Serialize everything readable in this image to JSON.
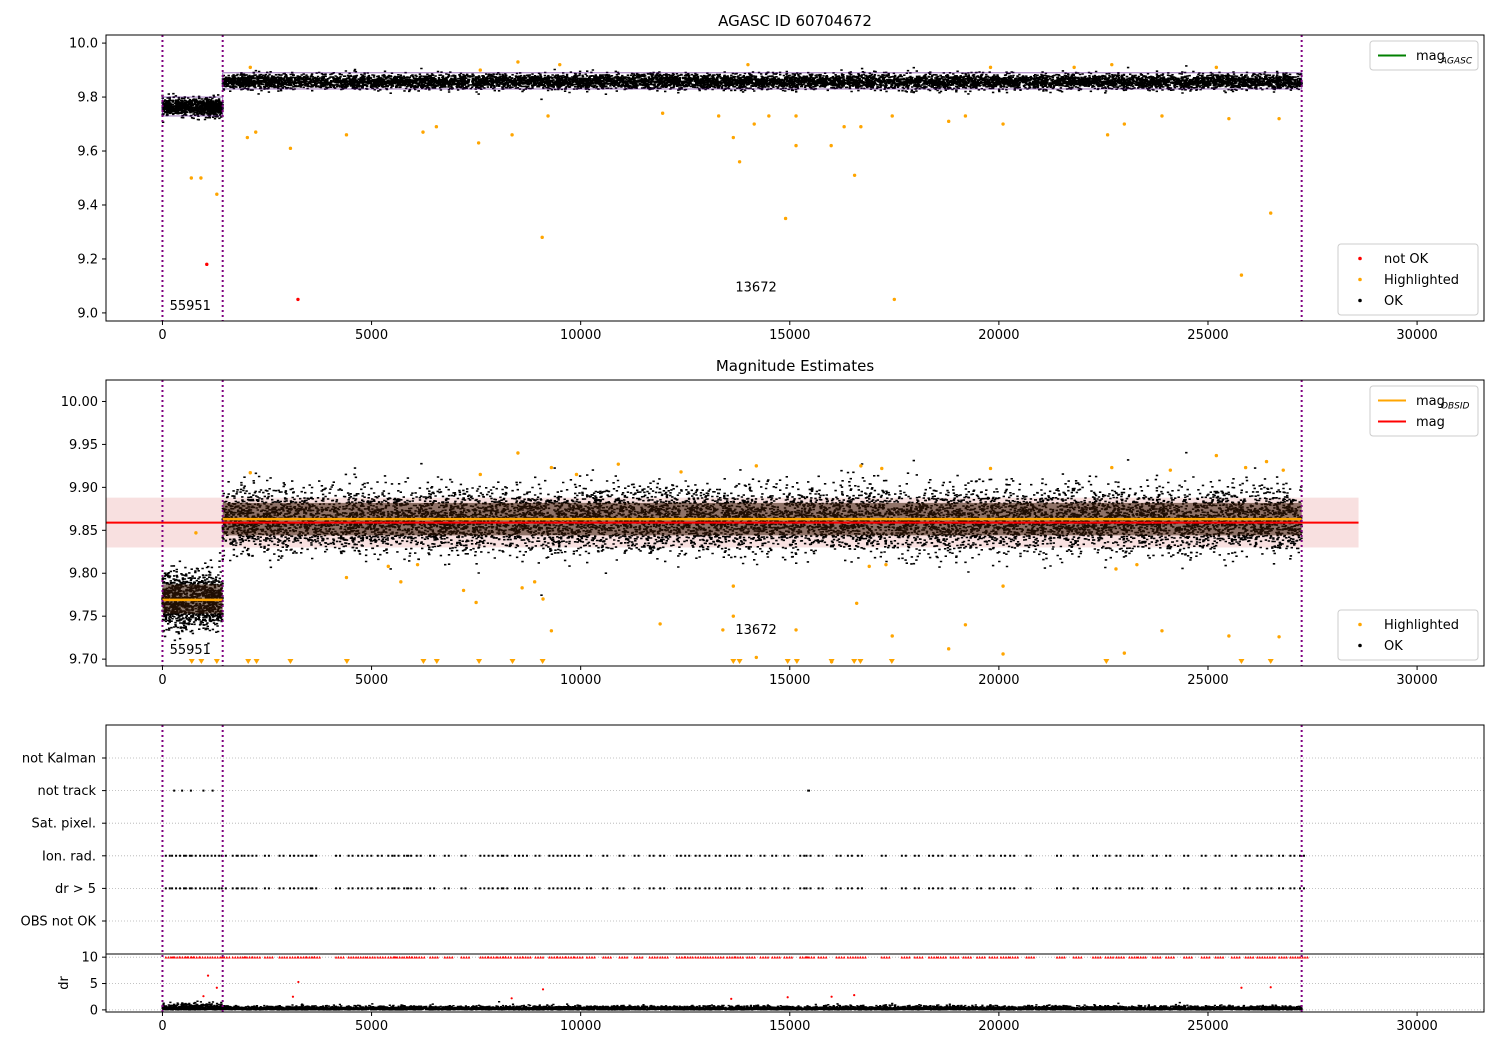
{
  "chart_data": [
    {
      "type": "scatter",
      "title": "AGASC ID 60704672",
      "xlim": [
        -1350,
        31600
      ],
      "ylim": [
        8.97,
        10.03
      ],
      "xticks": [
        0,
        5000,
        10000,
        15000,
        20000,
        25000,
        30000
      ],
      "yticks": [
        9.0,
        9.2,
        9.4,
        9.6,
        9.8,
        10.0
      ],
      "ytick_labels": [
        "9.0",
        "9.2",
        "9.4",
        "9.6",
        "9.8",
        "10.0"
      ],
      "obs_boundaries": [
        0,
        1440,
        27240
      ],
      "obs_labels": [
        {
          "text": "55951",
          "x": 170,
          "y": 9.01
        },
        {
          "text": "13672",
          "x": 13700,
          "y": 9.08
        }
      ],
      "bands": [
        {
          "x": [
            0,
            1440
          ],
          "center": 9.765,
          "halfwidth": 0.035
        },
        {
          "x": [
            1440,
            27240
          ],
          "center": 9.86,
          "halfwidth": 0.03
        }
      ],
      "colors": {
        "ok": "#000000",
        "highlighted": "#ffa500",
        "not_ok": "#ff0000",
        "mag_agasc": "#008000",
        "boundary": "#800080",
        "band_outline": "#4b0082"
      },
      "series": [
        {
          "name": "not OK",
          "color": "#ff0000",
          "points": [
            [
              1060,
              9.18
            ],
            [
              3240,
              9.05
            ]
          ]
        },
        {
          "name": "Highlighted",
          "color": "#ffa500",
          "points": [
            [
              690,
              9.5
            ],
            [
              920,
              9.5
            ],
            [
              1300,
              9.44
            ],
            [
              2030,
              9.65
            ],
            [
              2230,
              9.67
            ],
            [
              3060,
              9.61
            ],
            [
              4400,
              9.66
            ],
            [
              6230,
              9.67
            ],
            [
              6550,
              9.69
            ],
            [
              7560,
              9.63
            ],
            [
              8360,
              9.66
            ],
            [
              9080,
              9.28
            ],
            [
              9220,
              9.73
            ],
            [
              11960,
              9.74
            ],
            [
              13300,
              9.73
            ],
            [
              13650,
              9.65
            ],
            [
              13800,
              9.56
            ],
            [
              14150,
              9.7
            ],
            [
              14500,
              9.73
            ],
            [
              14900,
              9.35
            ],
            [
              15150,
              9.73
            ],
            [
              15150,
              9.62
            ],
            [
              15990,
              9.62
            ],
            [
              16300,
              9.69
            ],
            [
              16550,
              9.51
            ],
            [
              16700,
              9.69
            ],
            [
              17450,
              9.73
            ],
            [
              17500,
              9.05
            ],
            [
              18800,
              9.71
            ],
            [
              19200,
              9.73
            ],
            [
              20100,
              9.7
            ],
            [
              22600,
              9.66
            ],
            [
              23000,
              9.7
            ],
            [
              23900,
              9.73
            ],
            [
              25500,
              9.72
            ],
            [
              25800,
              9.14
            ],
            [
              26500,
              9.37
            ],
            [
              26700,
              9.72
            ],
            [
              8500,
              9.93
            ],
            [
              2100,
              9.91
            ],
            [
              9500,
              9.92
            ],
            [
              22700,
              9.92
            ],
            [
              25200,
              9.91
            ],
            [
              21800,
              9.91
            ],
            [
              14000,
              9.92
            ],
            [
              19800,
              9.91
            ],
            [
              7600,
              9.9
            ]
          ]
        },
        {
          "name": "OK",
          "color": "#000000"
        }
      ],
      "legends": [
        {
          "position": "top-right",
          "entries": [
            {
              "label": "mag",
              "sub": "AGASC",
              "kind": "line",
              "color": "#008000"
            }
          ]
        },
        {
          "position": "bottom-right",
          "entries": [
            {
              "label": "not OK",
              "kind": "dot",
              "color": "#ff0000"
            },
            {
              "label": "Highlighted",
              "kind": "dot",
              "color": "#ffa500"
            },
            {
              "label": "OK",
              "kind": "dot",
              "color": "#000000"
            }
          ]
        }
      ]
    },
    {
      "type": "scatter",
      "title": "Magnitude Estimates",
      "xlim": [
        -1350,
        31600
      ],
      "ylim": [
        9.692,
        10.025
      ],
      "xticks": [
        0,
        5000,
        10000,
        15000,
        20000,
        25000,
        30000
      ],
      "yticks": [
        9.7,
        9.75,
        9.8,
        9.85,
        9.9,
        9.95,
        10.0
      ],
      "ytick_labels": [
        "9.70",
        "9.75",
        "9.80",
        "9.85",
        "9.90",
        "9.95",
        "10.00"
      ],
      "obs_boundaries": [
        0,
        1440,
        27240
      ],
      "obs_labels": [
        {
          "text": "55951",
          "x": 170,
          "y": 9.706
        },
        {
          "text": "13672",
          "x": 13700,
          "y": 9.729
        }
      ],
      "mag": {
        "value": 9.859,
        "x": [
          -1350,
          28600
        ],
        "band": [
          9.83,
          9.888
        ]
      },
      "mag_obsid": [
        {
          "x": [
            0,
            1440
          ],
          "value": 9.769
        },
        {
          "x": [
            1440,
            27240
          ],
          "value": 9.863
        }
      ],
      "bands": [
        {
          "x": [
            0,
            1440
          ],
          "center": 9.77,
          "halfwidth": 0.038
        },
        {
          "x": [
            1440,
            27240
          ],
          "center": 9.863,
          "halfwidth": 0.042
        }
      ],
      "lower_limit_markers": [
        700,
        930,
        1300,
        2050,
        2250,
        3060,
        4410,
        6240,
        6560,
        7570,
        8370,
        9090,
        13650,
        13800,
        14950,
        15170,
        16000,
        16540,
        16690,
        17440,
        22570,
        25800,
        26500
      ],
      "colors": {
        "ok": "#000000",
        "highlighted": "#ffa500",
        "mag": "#ff0000",
        "mag_obsid": "#ffa500",
        "band_fill": "#f5d0d0",
        "boundary": "#800080"
      },
      "series": [
        {
          "name": "Highlighted",
          "color": "#ffa500",
          "points": [
            [
              8500,
              9.94
            ],
            [
              9300,
              9.923
            ],
            [
              10900,
              9.927
            ],
            [
              12400,
              9.918
            ],
            [
              14200,
              9.925
            ],
            [
              16700,
              9.925
            ],
            [
              17200,
              9.922
            ],
            [
              19800,
              9.922
            ],
            [
              22700,
              9.923
            ],
            [
              24100,
              9.92
            ],
            [
              25200,
              9.937
            ],
            [
              25900,
              9.923
            ],
            [
              26400,
              9.93
            ],
            [
              26800,
              9.92
            ],
            [
              2100,
              9.917
            ],
            [
              7600,
              9.915
            ],
            [
              9900,
              9.915
            ],
            [
              4400,
              9.795
            ],
            [
              5700,
              9.79
            ],
            [
              7200,
              9.78
            ],
            [
              7500,
              9.766
            ],
            [
              8600,
              9.783
            ],
            [
              8900,
              9.79
            ],
            [
              9100,
              9.77
            ],
            [
              9300,
              9.733
            ],
            [
              11900,
              9.741
            ],
            [
              13400,
              9.734
            ],
            [
              13650,
              9.75
            ],
            [
              13650,
              9.785
            ],
            [
              14200,
              9.702
            ],
            [
              15150,
              9.734
            ],
            [
              16000,
              9.697
            ],
            [
              16600,
              9.765
            ],
            [
              17450,
              9.727
            ],
            [
              18800,
              9.712
            ],
            [
              19200,
              9.74
            ],
            [
              20100,
              9.706
            ],
            [
              20100,
              9.785
            ],
            [
              22800,
              9.805
            ],
            [
              23000,
              9.707
            ],
            [
              23900,
              9.733
            ],
            [
              25500,
              9.727
            ],
            [
              26700,
              9.726
            ],
            [
              16900,
              9.808
            ],
            [
              17300,
              9.81
            ],
            [
              5400,
              9.808
            ],
            [
              6100,
              9.81
            ],
            [
              23300,
              9.81
            ],
            [
              800,
              9.847
            ]
          ]
        },
        {
          "name": "OK",
          "color": "#000000"
        }
      ],
      "legends": [
        {
          "position": "top-right",
          "entries": [
            {
              "label": "mag",
              "sub": "OBSID",
              "kind": "line",
              "color": "#ffa500"
            },
            {
              "label": "mag",
              "sub": "",
              "kind": "line",
              "color": "#ff0000"
            }
          ]
        },
        {
          "position": "bottom-right",
          "entries": [
            {
              "label": "Highlighted",
              "kind": "dot",
              "color": "#ffa500"
            },
            {
              "label": "OK",
              "kind": "dot",
              "color": "#000000"
            }
          ]
        }
      ]
    },
    {
      "type": "scatter",
      "title": "",
      "xlim": [
        -1350,
        31600
      ],
      "xticks": [
        0,
        5000,
        10000,
        15000,
        20000,
        25000,
        30000
      ],
      "obs_boundaries": [
        0,
        1440,
        27240
      ],
      "flag_rows": [
        "not Kalman",
        "not track",
        "Sat. pixel.",
        "Ion. rad.",
        "dr > 5",
        "OBS not OK"
      ],
      "flag_events": {
        "not Kalman": [],
        "not track": [
          280,
          470,
          680,
          980,
          1200,
          15440,
          15460
        ],
        "Sat. pixel.": [],
        "Ion. rad.": [
          80,
          230,
          420,
          560,
          700,
          900,
          1080,
          1260,
          1420,
          1680,
          1800,
          1960,
          2150,
          2450,
          2800,
          3050,
          3250,
          3450,
          3580,
          4150,
          4450,
          4680,
          4900,
          5150,
          5400,
          5550,
          5780,
          5850,
          6080,
          6400,
          6750,
          7150,
          7600,
          7800,
          8020,
          8150,
          8430,
          8620,
          8920,
          9250,
          9450,
          9650,
          9860,
          10150,
          10540,
          10930,
          11290,
          11650,
          11900,
          12300,
          12500,
          12750,
          12980,
          13230,
          13500,
          13700,
          13980,
          14300,
          14580,
          14870,
          15250,
          15400,
          15690,
          16120,
          16390,
          16630,
          17200,
          17680,
          17990,
          18330,
          18550,
          18850,
          19150,
          19480,
          19780,
          20050,
          20270,
          20660,
          21390,
          21790,
          22250,
          22550,
          22810,
          23120,
          23330,
          23680,
          24000,
          24430,
          24850,
          25180,
          25570,
          25900,
          26180,
          26420,
          26700,
          26970,
          27200
        ],
        "dr > 5": [
          80,
          230,
          420,
          560,
          700,
          900,
          1080,
          1260,
          1420,
          1680,
          1800,
          1960,
          2150,
          2450,
          2800,
          3050,
          3250,
          3450,
          3580,
          4150,
          4450,
          4680,
          4900,
          5150,
          5400,
          5550,
          5780,
          5850,
          6080,
          6400,
          6750,
          7150,
          7600,
          7800,
          8020,
          8150,
          8430,
          8620,
          8920,
          9250,
          9450,
          9650,
          9860,
          10150,
          10540,
          10930,
          11290,
          11650,
          11900,
          12300,
          12500,
          12750,
          12980,
          13230,
          13500,
          13700,
          13980,
          14300,
          14580,
          14870,
          15250,
          15400,
          15690,
          16120,
          16390,
          16630,
          17200,
          17680,
          17990,
          18330,
          18550,
          18850,
          19150,
          19480,
          19780,
          20050,
          20270,
          20660,
          21390,
          21790,
          22250,
          22550,
          22810,
          23120,
          23330,
          23680,
          24000,
          24430,
          24850,
          25180,
          25570,
          25900,
          26180,
          26420,
          26700,
          26970,
          27200
        ],
        "OBS not OK": []
      },
      "dr_panel": {
        "ylabel": "dr",
        "yticks": [
          0,
          5,
          10
        ],
        "ylim": [
          -0.4,
          10.6
        ],
        "clip_value": 10,
        "outliers": [
          [
            980,
            2.6
          ],
          [
            1090,
            6.5
          ],
          [
            1300,
            4.2
          ],
          [
            3250,
            5.3
          ],
          [
            9100,
            3.9
          ],
          [
            25800,
            4.2
          ],
          [
            26500,
            4.3
          ],
          [
            3120,
            2.5
          ],
          [
            8350,
            2.2
          ],
          [
            14950,
            2.4
          ],
          [
            16540,
            2.8
          ],
          [
            16000,
            2.5
          ],
          [
            13600,
            2.1
          ]
        ]
      },
      "colors": {
        "points": "#000000",
        "clipped": "#ff0000",
        "boundary": "#800080",
        "grid": "#b0b0b0"
      }
    }
  ]
}
